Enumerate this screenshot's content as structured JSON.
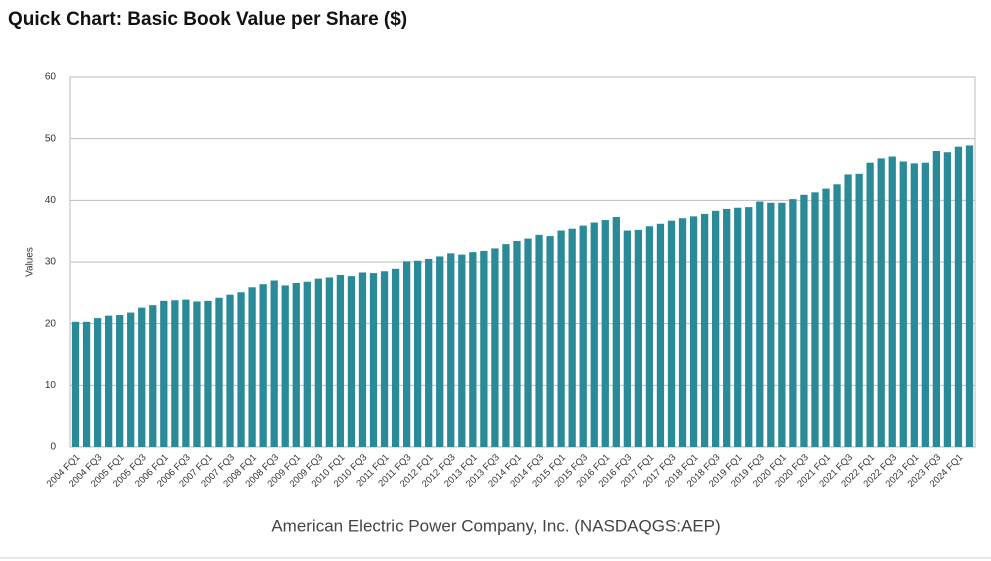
{
  "chart_data": {
    "type": "bar",
    "title": "Quick Chart: Basic Book Value per Share ($)",
    "y_label": "Values",
    "caption": "American Electric Power Company, Inc. (NASDAQGS:AEP)",
    "color": "#2b8a98",
    "grid": true,
    "ylim": [
      0,
      60
    ],
    "yticks": [
      0,
      10,
      20,
      30,
      40,
      50,
      60
    ],
    "categories": [
      "2004 FQ1",
      null,
      "2004 FQ3",
      null,
      "2005 FQ1",
      null,
      "2005 FQ3",
      null,
      "2006 FQ1",
      null,
      "2006 FQ3",
      null,
      "2007 FQ1",
      null,
      "2007 FQ3",
      null,
      "2008 FQ1",
      null,
      "2008 FQ3",
      null,
      "2009 FQ1",
      null,
      "2009 FQ3",
      null,
      "2010 FQ1",
      null,
      "2010 FQ3",
      null,
      "2011 FQ1",
      null,
      "2011 FQ3",
      null,
      "2012 FQ1",
      null,
      "2012 FQ3",
      null,
      "2013 FQ1",
      null,
      "2013 FQ3",
      null,
      "2014 FQ1",
      null,
      "2014 FQ3",
      null,
      "2015 FQ1",
      null,
      "2015 FQ3",
      null,
      "2016 FQ1",
      null,
      "2016 FQ3",
      null,
      "2017 FQ1",
      null,
      "2017 FQ3",
      null,
      "2018 FQ1",
      null,
      "2018 FQ3",
      null,
      "2019 FQ1",
      null,
      "2019 FQ3",
      null,
      "2020 FQ1",
      null,
      "2020 FQ3",
      null,
      "2021 FQ1",
      null,
      "2021 FQ3",
      null,
      "2022 FQ1",
      null,
      "2022 FQ3",
      null,
      "2023 FQ1",
      null,
      "2023 FQ3",
      null,
      "2024 FQ1",
      null
    ],
    "values": [
      20.3,
      20.3,
      20.9,
      21.3,
      21.4,
      21.8,
      22.6,
      23.0,
      23.7,
      23.8,
      23.9,
      23.6,
      23.7,
      24.2,
      24.7,
      25.1,
      25.9,
      26.4,
      27.0,
      26.2,
      26.6,
      26.8,
      27.3,
      27.5,
      27.9,
      27.7,
      28.3,
      28.2,
      28.5,
      28.9,
      30.1,
      30.2,
      30.5,
      30.9,
      31.4,
      31.2,
      31.6,
      31.8,
      32.2,
      32.9,
      33.4,
      33.8,
      34.4,
      34.2,
      35.1,
      35.4,
      35.9,
      36.4,
      36.8,
      37.3,
      35.1,
      35.2,
      35.8,
      36.2,
      36.7,
      37.1,
      37.4,
      37.8,
      38.3,
      38.6,
      38.8,
      38.9,
      39.8,
      39.6,
      39.6,
      40.2,
      40.9,
      41.3,
      41.9,
      42.6,
      44.2,
      44.3,
      46.1,
      46.8,
      47.1,
      46.3,
      46.0,
      46.1,
      48.0,
      47.8,
      48.7,
      48.9
    ]
  }
}
